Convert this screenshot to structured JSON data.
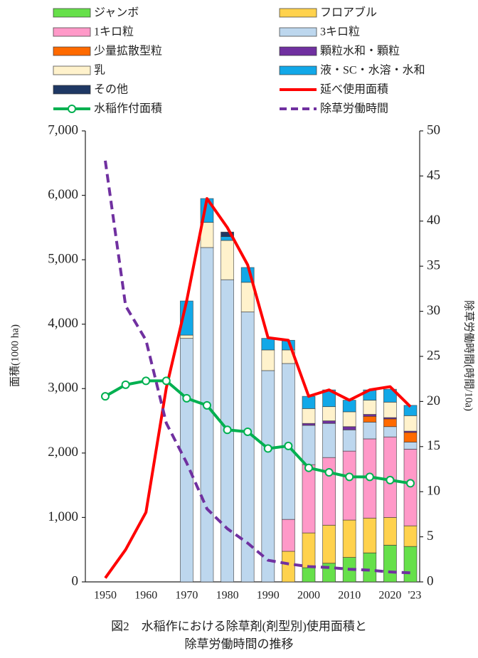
{
  "chart_data": {
    "type": "bar",
    "stacked": true,
    "caption": [
      "図2　水稲作における除草剤(剤型別)使用面積と",
      "除草労働時間の推移"
    ],
    "y_label": "面積(1000 ha)",
    "y2_label": "除草労働時間(時間/10a)",
    "categories": [
      "1950",
      null,
      "1960",
      null,
      "1970",
      null,
      "1980",
      null,
      "1990",
      null,
      "2000",
      null,
      "2010",
      null,
      "2020",
      "'23"
    ],
    "ylim": [
      0,
      7000
    ],
    "yticks": [
      0,
      {
        "value": 1000,
        "label": "1,000"
      },
      {
        "value": 2000,
        "label": "2,000"
      },
      {
        "value": 3000,
        "label": "3,000"
      },
      {
        "value": 4000,
        "label": "4,000"
      },
      {
        "value": 5000,
        "label": "5,000"
      },
      {
        "value": 6000,
        "label": "6,000"
      },
      {
        "value": 7000,
        "label": "7,000"
      }
    ],
    "y2lim": [
      0,
      50
    ],
    "y2ticks": [
      0,
      5,
      10,
      15,
      20,
      25,
      30,
      35,
      40,
      45,
      50
    ],
    "series": [
      {
        "name": "ジャンボ",
        "color": "#66e04a",
        "values": [
          null,
          null,
          null,
          null,
          null,
          null,
          null,
          null,
          null,
          null,
          220,
          290,
          380,
          450,
          570,
          550
        ]
      },
      {
        "name": "フロアブル",
        "color": "#ffd24d",
        "values": [
          null,
          null,
          null,
          null,
          null,
          null,
          null,
          null,
          null,
          475,
          540,
          590,
          580,
          540,
          430,
          320
        ]
      },
      {
        "name": "1キロ粒",
        "color": "#ff99c8",
        "values": [
          null,
          null,
          null,
          null,
          null,
          null,
          null,
          null,
          null,
          495,
          1060,
          1050,
          1070,
          1230,
          1250,
          1190
        ]
      },
      {
        "name": "3キロ粒",
        "color": "#bdd7ee",
        "values": [
          null,
          null,
          null,
          null,
          3780,
          5190,
          4690,
          4190,
          3280,
          2420,
          610,
          530,
          330,
          260,
          160,
          110
        ]
      },
      {
        "name": "少量拡散型粒",
        "color": "#ff6a00",
        "values": [
          null,
          null,
          null,
          null,
          null,
          null,
          null,
          null,
          null,
          null,
          null,
          null,
          null,
          90,
          120,
          150
        ]
      },
      {
        "name": "顆粒水和・顆粒",
        "color": "#7030a0",
        "values": [
          null,
          null,
          null,
          null,
          null,
          null,
          null,
          null,
          null,
          null,
          30,
          40,
          50,
          30,
          20,
          20
        ]
      },
      {
        "name": "乳",
        "color": "#fff2cc",
        "values": [
          null,
          null,
          null,
          null,
          50,
          390,
          610,
          460,
          320,
          210,
          230,
          220,
          230,
          220,
          240,
          240
        ]
      },
      {
        "name": "液・SC・水溶・水和",
        "color": "#12a8e8",
        "values": [
          null,
          null,
          null,
          null,
          530,
          370,
          60,
          230,
          180,
          150,
          190,
          260,
          180,
          160,
          200,
          160
        ]
      },
      {
        "name": "その他",
        "color": "#1f3864",
        "values": [
          null,
          null,
          null,
          null,
          null,
          null,
          70,
          null,
          null,
          null,
          null,
          null,
          null,
          null,
          null,
          null
        ]
      },
      {
        "name": "延べ使用面積",
        "type": "line",
        "color": "#ff0000",
        "values": [
          60,
          500,
          1080,
          3010,
          4360,
          5950,
          5500,
          4920,
          3790,
          3750,
          2880,
          2980,
          2820,
          2980,
          3030,
          2720
        ]
      },
      {
        "name": "水稲作付面積",
        "type": "line",
        "marker": true,
        "color": "#00b050",
        "values": [
          2880,
          3060,
          3120,
          3120,
          2850,
          2740,
          2360,
          2330,
          2070,
          2110,
          1770,
          1700,
          1630,
          1630,
          1580,
          1530
        ]
      },
      {
        "name": "除草労働時間",
        "type": "line",
        "dashed": true,
        "axis": "y2",
        "color": "#7030a0",
        "values": [
          46.7,
          30.6,
          26.8,
          17.6,
          13.2,
          8.1,
          5.9,
          4.3,
          2.4,
          2.0,
          1.7,
          1.6,
          1.4,
          1.3,
          1.1,
          1.0
        ]
      }
    ]
  }
}
